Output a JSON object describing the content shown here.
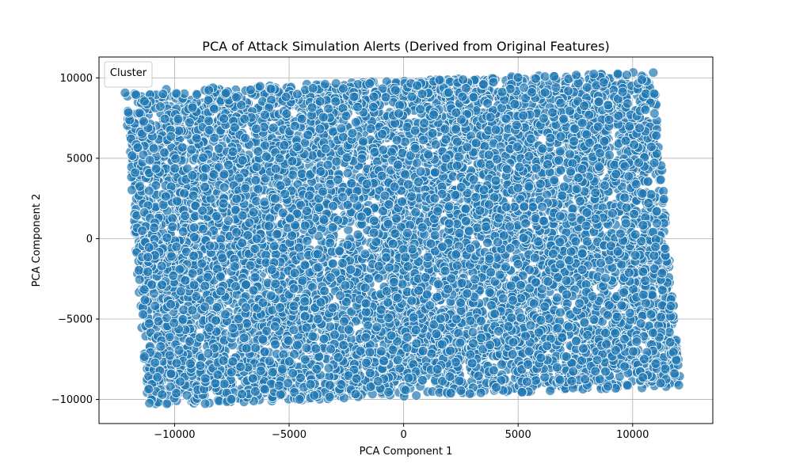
{
  "chart_data": {
    "type": "scatter",
    "title": "PCA of Attack Simulation Alerts (Derived from Original Features)",
    "xlabel": "PCA Component 1",
    "ylabel": "PCA Component 2",
    "xlim": [
      -13300,
      13500
    ],
    "ylim": [
      -11500,
      11300
    ],
    "xticks": [
      -10000,
      -5000,
      0,
      5000,
      10000
    ],
    "yticks": [
      -10000,
      -5000,
      0,
      5000,
      10000
    ],
    "xtick_labels": [
      "−10000",
      "−5000",
      "0",
      "5000",
      "10000"
    ],
    "ytick_labels": [
      "−10000",
      "−5000",
      "0",
      "5000",
      "10000"
    ],
    "grid": true,
    "legend": {
      "title": "Cluster",
      "placement": "top-left",
      "entries": []
    },
    "point_color": "#1f77b4",
    "point_edge_color": "#ffffff",
    "point_alpha": 0.7,
    "point_cloud_corners": [
      {
        "x": -12200,
        "y": 9200
      },
      {
        "x": 10900,
        "y": 10400
      },
      {
        "x": 12100,
        "y": -9200
      },
      {
        "x": -11200,
        "y": -10400
      }
    ],
    "point_count_approx": 9000
  }
}
